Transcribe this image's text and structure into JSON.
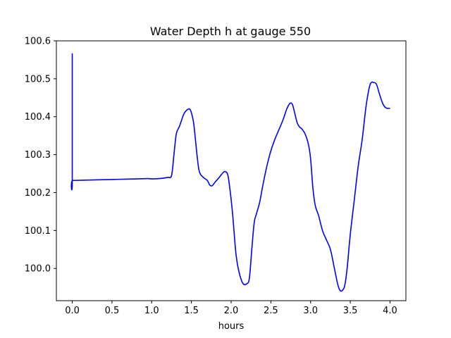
{
  "chart_data": {
    "type": "line",
    "title": "Water Depth h at gauge 550",
    "xlabel": "hours",
    "ylabel": "",
    "xlim": [
      -0.2,
      4.2
    ],
    "ylim": [
      99.915,
      100.6
    ],
    "xticks": [
      0.0,
      0.5,
      1.0,
      1.5,
      2.0,
      2.5,
      3.0,
      3.5,
      4.0
    ],
    "xtick_labels": [
      "0.0",
      "0.5",
      "1.0",
      "1.5",
      "2.0",
      "2.5",
      "3.0",
      "3.5",
      "4.0"
    ],
    "yticks": [
      100.0,
      100.1,
      100.2,
      100.3,
      100.4,
      100.5,
      100.6
    ],
    "ytick_labels": [
      "100.0",
      "100.1",
      "100.2",
      "100.3",
      "100.4",
      "100.5",
      "100.6"
    ],
    "grid": false,
    "series": [
      {
        "name": "",
        "color": "#0000ff",
        "x": [
          0.0,
          0.0,
          0.005,
          0.2,
          0.4,
          0.6,
          0.8,
          0.95,
          1.0,
          1.1,
          1.2,
          1.25,
          1.28,
          1.31,
          1.35,
          1.4,
          1.43,
          1.46,
          1.48,
          1.5,
          1.53,
          1.57,
          1.6,
          1.65,
          1.7,
          1.73,
          1.76,
          1.8,
          1.85,
          1.9,
          1.93,
          1.96,
          1.99,
          2.02,
          2.06,
          2.1,
          2.15,
          2.2,
          2.23,
          2.26,
          2.29,
          2.32,
          2.36,
          2.4,
          2.45,
          2.5,
          2.55,
          2.6,
          2.65,
          2.7,
          2.74,
          2.77,
          2.8,
          2.83,
          2.86,
          2.89,
          2.93,
          2.97,
          3.0,
          3.03,
          3.06,
          3.1,
          3.15,
          3.2,
          3.25,
          3.3,
          3.34,
          3.37,
          3.4,
          3.43,
          3.46,
          3.5,
          3.55,
          3.6,
          3.65,
          3.7,
          3.75,
          3.8,
          3.83,
          3.86,
          3.89,
          3.92,
          3.95,
          3.98,
          4.0
        ],
        "values": [
          100.567,
          100.232,
          100.232,
          100.233,
          100.234,
          100.235,
          100.236,
          100.237,
          100.236,
          100.237,
          100.24,
          100.245,
          100.3,
          100.355,
          100.375,
          100.405,
          100.415,
          100.42,
          100.42,
          100.41,
          100.38,
          100.3,
          100.255,
          100.24,
          100.232,
          100.22,
          100.218,
          100.228,
          100.24,
          100.253,
          100.255,
          100.245,
          100.2,
          100.14,
          100.04,
          99.99,
          99.96,
          99.96,
          99.975,
          100.05,
          100.12,
          100.145,
          100.175,
          100.22,
          100.27,
          100.31,
          100.34,
          100.365,
          100.39,
          100.42,
          100.435,
          100.433,
          100.41,
          100.385,
          100.373,
          100.368,
          100.355,
          100.33,
          100.29,
          100.21,
          100.165,
          100.14,
          100.1,
          100.075,
          100.05,
          100.0,
          99.96,
          99.942,
          99.942,
          99.955,
          100.0,
          100.09,
          100.18,
          100.27,
          100.34,
          100.43,
          100.485,
          100.49,
          100.485,
          100.465,
          100.445,
          100.43,
          100.423,
          100.422,
          100.422
        ]
      }
    ]
  }
}
